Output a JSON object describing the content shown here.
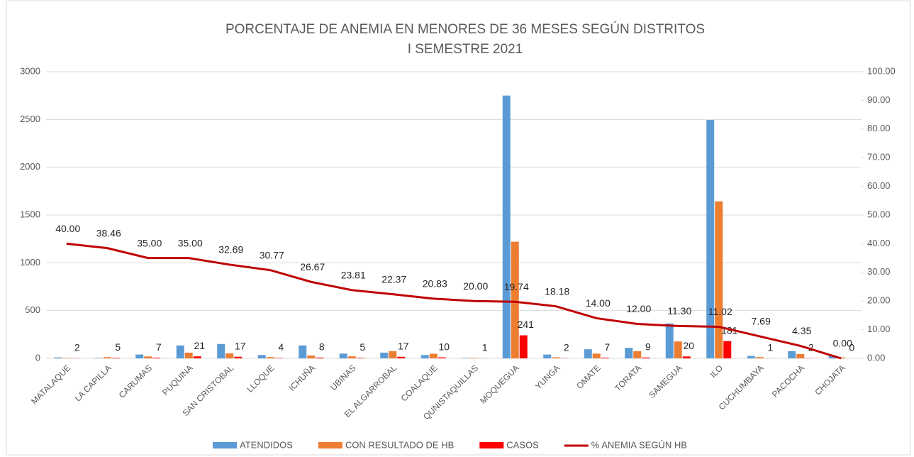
{
  "chart_data": {
    "type": "bar",
    "title": "PORCENTAJE DE ANEMIA EN MENORES DE 36 MESES SEGÚN DISTRITOS",
    "subtitle": "I SEMESTRE 2021",
    "categories": [
      "MATALAQUE",
      "LA CAPILLA",
      "CARUMAS",
      "PUQUINA",
      "SAN CRISTOBAL",
      "LLOQUE",
      "ICHUÑA",
      "UBINAS",
      "EL ALGARROBAL",
      "COALAQUE",
      "QUNISTAQUILLAS",
      "MOQUEGUA",
      "YUNGA",
      "OMATE",
      "TORATA",
      "SAMEGUA",
      "ILO",
      "CUCHUMBAYA",
      "PACOCHA",
      "CHOJATA"
    ],
    "series": [
      {
        "name": "ATENDIDOS",
        "color": "#5b9bd5",
        "type": "bar",
        "values": [
          10,
          5,
          40,
          135,
          150,
          35,
          135,
          50,
          60,
          35,
          5,
          2750,
          40,
          95,
          110,
          365,
          2495,
          25,
          75,
          30
        ]
      },
      {
        "name": "CON RESULTADO DE HB",
        "color": "#ed7d31",
        "type": "bar",
        "values": [
          5,
          13,
          20,
          60,
          52,
          13,
          30,
          21,
          76,
          48,
          5,
          1221,
          11,
          50,
          75,
          177,
          1643,
          13,
          46,
          10
        ]
      },
      {
        "name": "CASOS",
        "color": "#ff0000",
        "type": "bar",
        "labels": true,
        "values": [
          2,
          5,
          7,
          21,
          17,
          4,
          8,
          5,
          17,
          10,
          1,
          241,
          2,
          7,
          9,
          20,
          181,
          1,
          2,
          0
        ]
      },
      {
        "name": "% ANEMIA SEGÚN HB",
        "color": "#c00000",
        "type": "line",
        "axis": "y2",
        "labels": true,
        "values": [
          40,
          38.46,
          35,
          35,
          32.69,
          30.77,
          26.67,
          23.81,
          22.37,
          20.83,
          20,
          19.74,
          18.18,
          14,
          12,
          11.3,
          11.02,
          7.69,
          4.35,
          0
        ],
        "value_labels": [
          "40.00",
          "38.46",
          "35.00",
          "35.00",
          "32.69",
          "30.77",
          "26.67",
          "23.81",
          "22.37",
          "20.83",
          "20.00",
          "19.74",
          "18.18",
          "14.00",
          "12.00",
          "11.30",
          "11.02",
          "7.69",
          "4.35",
          "0.00"
        ]
      }
    ],
    "ylim": [
      0,
      3000
    ],
    "yticks": [
      0,
      500,
      1000,
      1500,
      2000,
      2500,
      3000
    ],
    "y2lim": [
      0,
      100
    ],
    "y2ticks": [
      {
        "value": 0,
        "label": "0.00"
      },
      {
        "value": 10,
        "label": "10.00"
      },
      {
        "value": 20,
        "label": "20.00"
      },
      {
        "value": 30,
        "label": "30.00"
      },
      {
        "value": 40,
        "label": "40.00"
      },
      {
        "value": 50,
        "label": "50.00"
      },
      {
        "value": 60,
        "label": "60.00"
      },
      {
        "value": 70,
        "label": "70.00"
      },
      {
        "value": 80,
        "label": "80.00"
      },
      {
        "value": 90,
        "label": "90.00"
      },
      {
        "value": 100,
        "label": "100.00"
      }
    ],
    "grid": true,
    "legend": "bottom"
  }
}
